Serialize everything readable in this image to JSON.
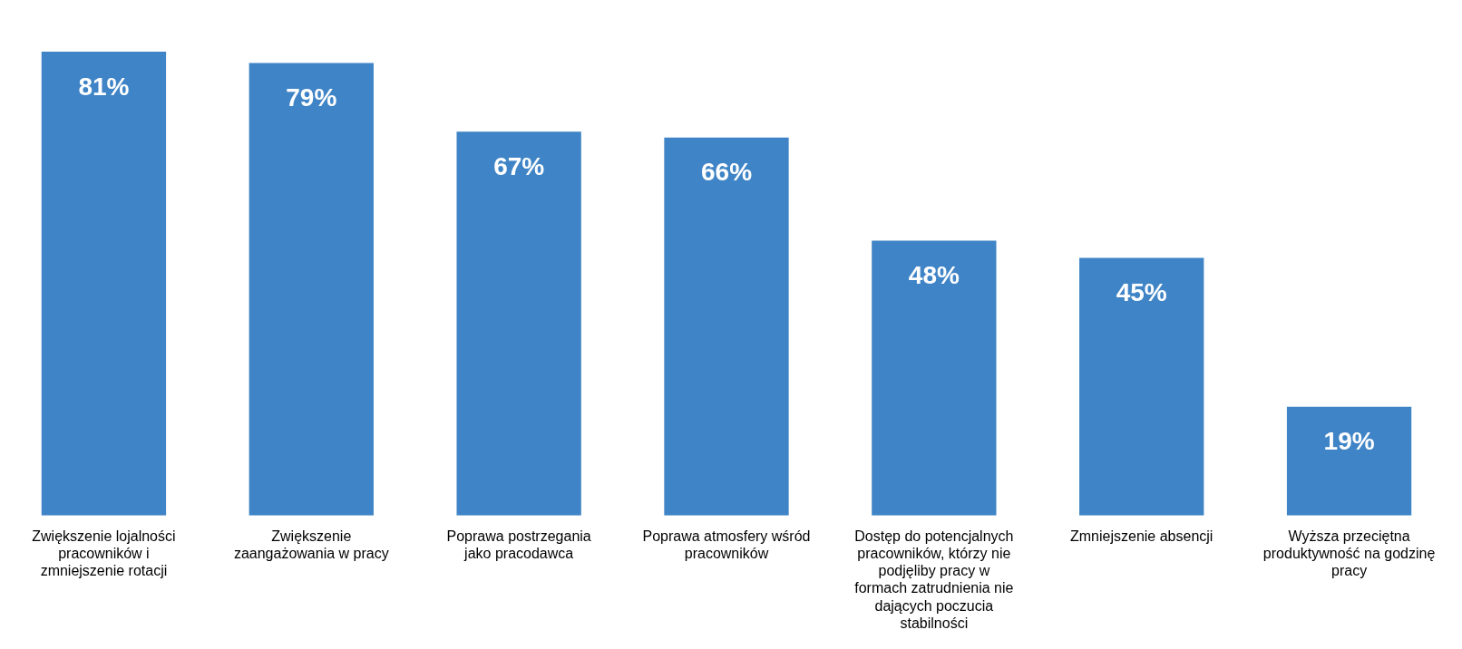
{
  "chart_data": {
    "type": "bar",
    "categories": [
      "Zwiększenie lojalności pracowników i zmniejszenie rotacji",
      "Zwiększenie zaangażowania w pracy",
      "Poprawa postrzegania jako pracodawca",
      "Poprawa atmosfery wśród pracowników",
      "Dostęp do potencjalnych pracowników, którzy nie podjęliby pracy w formach zatrudnienia nie dających poczucia stabilności",
      "Zmniejszenie absencji",
      "Wyższa przeciętna produktywność na godzinę pracy"
    ],
    "values": [
      81,
      79,
      67,
      66,
      48,
      45,
      19
    ],
    "value_labels": [
      "81%",
      "79%",
      "67%",
      "66%",
      "48%",
      "45%",
      "19%"
    ],
    "color": "#3f84c6",
    "grid": false,
    "legend": false
  }
}
